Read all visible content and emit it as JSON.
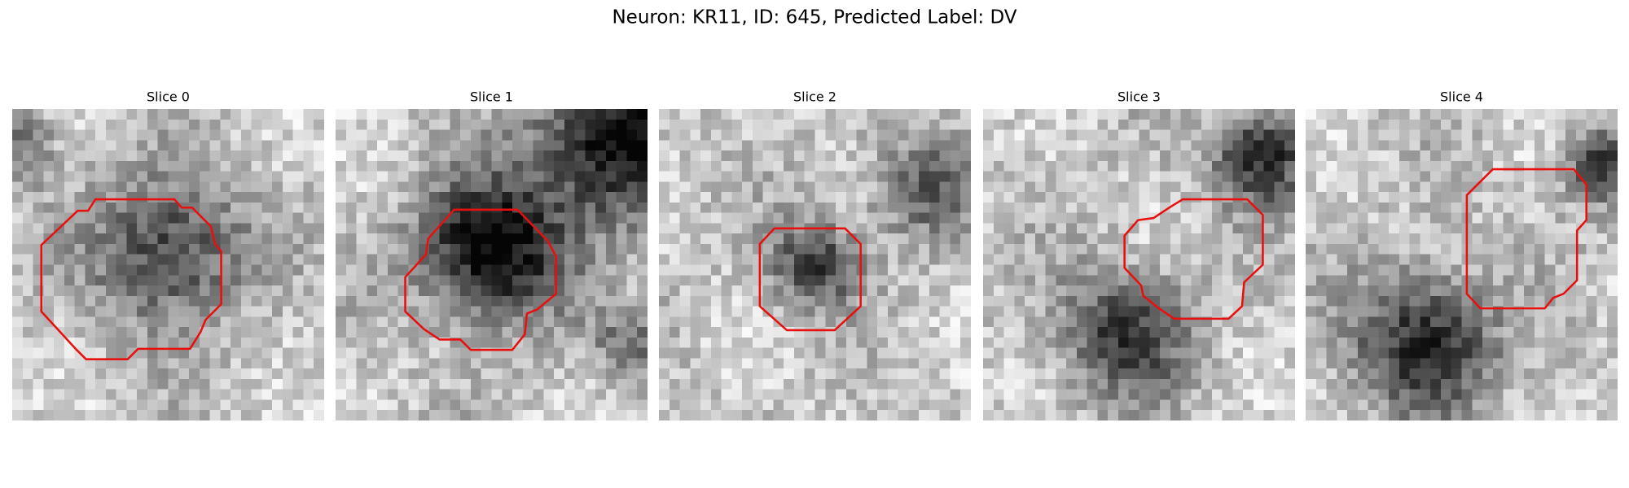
{
  "figure": {
    "title": "Neuron: KR11, ID: 645, Predicted Label: DV",
    "panels": [
      {
        "title": "Slice 0"
      },
      {
        "title": "Slice 1"
      },
      {
        "title": "Slice 2"
      },
      {
        "title": "Slice 3"
      },
      {
        "title": "Slice 4"
      }
    ]
  }
}
